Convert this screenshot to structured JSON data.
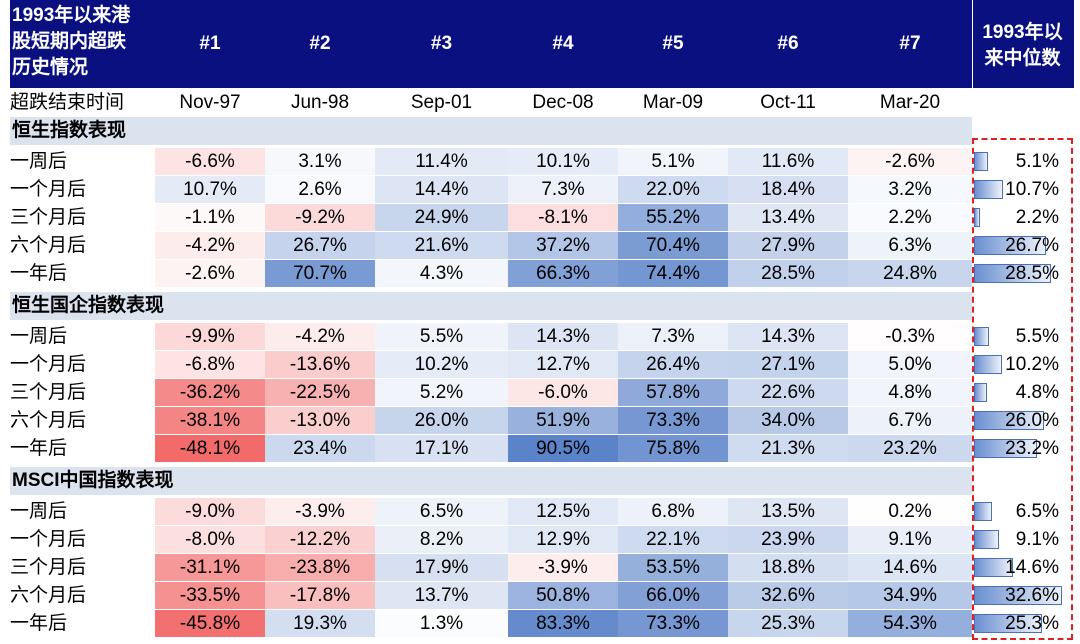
{
  "header": {
    "title": "1993年以来港股短期内超跌历史情况",
    "title_lines": [
      "1993年以来港",
      "股短期内超跌",
      "历史情况"
    ],
    "columns": [
      "#1",
      "#2",
      "#3",
      "#4",
      "#5",
      "#6",
      "#7"
    ],
    "median_label": "1993年以来中位数",
    "median_lines": [
      "1993年以",
      "来中位数"
    ]
  },
  "date_row": {
    "label": "超跌结束时间",
    "dates": [
      "Nov-97",
      "Jun-98",
      "Sep-01",
      "Dec-08",
      "Mar-09",
      "Oct-11",
      "Mar-20"
    ]
  },
  "colors": {
    "header_bg": "#0a1080",
    "section_bg": "#dbe3ef",
    "negative": "#f26a6a",
    "positive": "#5b83c9",
    "highlight_border": "#e02020"
  },
  "chart_data": {
    "type": "table",
    "title": "1993年以来港股短期内超跌历史情况",
    "columns": [
      "#1",
      "#2",
      "#3",
      "#4",
      "#5",
      "#6",
      "#7",
      "1993年以来中位数"
    ],
    "dates": [
      "Nov-97",
      "Jun-98",
      "Sep-01",
      "Dec-08",
      "Mar-09",
      "Oct-11",
      "Mar-20"
    ],
    "row_labels": [
      "一周后",
      "一个月后",
      "三个月后",
      "六个月后",
      "一年后"
    ],
    "sections": [
      {
        "name": "恒生指数表现",
        "rows": [
          {
            "label": "一周后",
            "values": [
              -6.6,
              3.1,
              11.4,
              10.1,
              5.1,
              11.6,
              -2.6
            ],
            "median": 5.1,
            "text": [
              "-6.6%",
              "3.1%",
              "11.4%",
              "10.1%",
              "5.1%",
              "11.6%",
              "-2.6%"
            ],
            "median_text": "5.1%"
          },
          {
            "label": "一个月后",
            "values": [
              10.7,
              2.6,
              14.4,
              7.3,
              22.0,
              18.4,
              3.2
            ],
            "median": 10.7,
            "text": [
              "10.7%",
              "2.6%",
              "14.4%",
              "7.3%",
              "22.0%",
              "18.4%",
              "3.2%"
            ],
            "median_text": "10.7%"
          },
          {
            "label": "三个月后",
            "values": [
              -1.1,
              -9.2,
              24.9,
              -8.1,
              55.2,
              13.4,
              2.2
            ],
            "median": 2.2,
            "text": [
              "-1.1%",
              "-9.2%",
              "24.9%",
              "-8.1%",
              "55.2%",
              "13.4%",
              "2.2%"
            ],
            "median_text": "2.2%"
          },
          {
            "label": "六个月后",
            "values": [
              -4.2,
              26.7,
              21.6,
              37.2,
              70.4,
              27.9,
              6.3
            ],
            "median": 26.7,
            "text": [
              "-4.2%",
              "26.7%",
              "21.6%",
              "37.2%",
              "70.4%",
              "27.9%",
              "6.3%"
            ],
            "median_text": "26.7%"
          },
          {
            "label": "一年后",
            "values": [
              -2.6,
              70.7,
              4.3,
              66.3,
              74.4,
              28.5,
              24.8
            ],
            "median": 28.5,
            "text": [
              "-2.6%",
              "70.7%",
              "4.3%",
              "66.3%",
              "74.4%",
              "28.5%",
              "24.8%"
            ],
            "median_text": "28.5%"
          }
        ]
      },
      {
        "name": "恒生国企指数表现",
        "rows": [
          {
            "label": "一周后",
            "values": [
              -9.9,
              -4.2,
              5.5,
              14.3,
              7.3,
              14.3,
              -0.3
            ],
            "median": 5.5,
            "text": [
              "-9.9%",
              "-4.2%",
              "5.5%",
              "14.3%",
              "7.3%",
              "14.3%",
              "-0.3%"
            ],
            "median_text": "5.5%"
          },
          {
            "label": "一个月后",
            "values": [
              -6.8,
              -13.6,
              10.2,
              12.7,
              26.4,
              27.1,
              5.0
            ],
            "median": 10.2,
            "text": [
              "-6.8%",
              "-13.6%",
              "10.2%",
              "12.7%",
              "26.4%",
              "27.1%",
              "5.0%"
            ],
            "median_text": "10.2%"
          },
          {
            "label": "三个月后",
            "values": [
              -36.2,
              -22.5,
              5.2,
              -6.0,
              57.8,
              22.6,
              4.8
            ],
            "median": 4.8,
            "text": [
              "-36.2%",
              "-22.5%",
              "5.2%",
              "-6.0%",
              "57.8%",
              "22.6%",
              "4.8%"
            ],
            "median_text": "4.8%"
          },
          {
            "label": "六个月后",
            "values": [
              -38.1,
              -13.0,
              26.0,
              51.9,
              73.3,
              34.0,
              6.7
            ],
            "median": 26.0,
            "text": [
              "-38.1%",
              "-13.0%",
              "26.0%",
              "51.9%",
              "73.3%",
              "34.0%",
              "6.7%"
            ],
            "median_text": "26.0%"
          },
          {
            "label": "一年后",
            "values": [
              -48.1,
              23.4,
              17.1,
              90.5,
              75.8,
              21.3,
              23.2
            ],
            "median": 23.2,
            "text": [
              "-48.1%",
              "23.4%",
              "17.1%",
              "90.5%",
              "75.8%",
              "21.3%",
              "23.2%"
            ],
            "median_text": "23.2%"
          }
        ]
      },
      {
        "name": "MSCI中国指数表现",
        "rows": [
          {
            "label": "一周后",
            "values": [
              -9.0,
              -3.9,
              6.5,
              12.5,
              6.8,
              13.5,
              0.2
            ],
            "median": 6.5,
            "text": [
              "-9.0%",
              "-3.9%",
              "6.5%",
              "12.5%",
              "6.8%",
              "13.5%",
              "0.2%"
            ],
            "median_text": "6.5%"
          },
          {
            "label": "一个月后",
            "values": [
              -8.0,
              -12.2,
              8.2,
              12.9,
              22.1,
              23.9,
              9.1
            ],
            "median": 9.1,
            "text": [
              "-8.0%",
              "-12.2%",
              "8.2%",
              "12.9%",
              "22.1%",
              "23.9%",
              "9.1%"
            ],
            "median_text": "9.1%"
          },
          {
            "label": "三个月后",
            "values": [
              -31.1,
              -23.8,
              17.9,
              -3.9,
              53.5,
              18.8,
              14.6
            ],
            "median": 14.6,
            "text": [
              "-31.1%",
              "-23.8%",
              "17.9%",
              "-3.9%",
              "53.5%",
              "18.8%",
              "14.6%"
            ],
            "median_text": "14.6%"
          },
          {
            "label": "六个月后",
            "values": [
              -33.5,
              -17.8,
              13.7,
              50.8,
              66.0,
              32.6,
              34.9
            ],
            "median": 32.6,
            "text": [
              "-33.5%",
              "-17.8%",
              "13.7%",
              "50.8%",
              "66.0%",
              "32.6%",
              "34.9%"
            ],
            "median_text": "32.6%"
          },
          {
            "label": "一年后",
            "values": [
              -45.8,
              19.3,
              1.3,
              83.3,
              73.3,
              25.3,
              54.3
            ],
            "median": 25.3,
            "text": [
              "-45.8%",
              "19.3%",
              "1.3%",
              "83.3%",
              "73.3%",
              "25.3%",
              "54.3%"
            ],
            "median_text": "25.3%"
          }
        ]
      }
    ]
  }
}
